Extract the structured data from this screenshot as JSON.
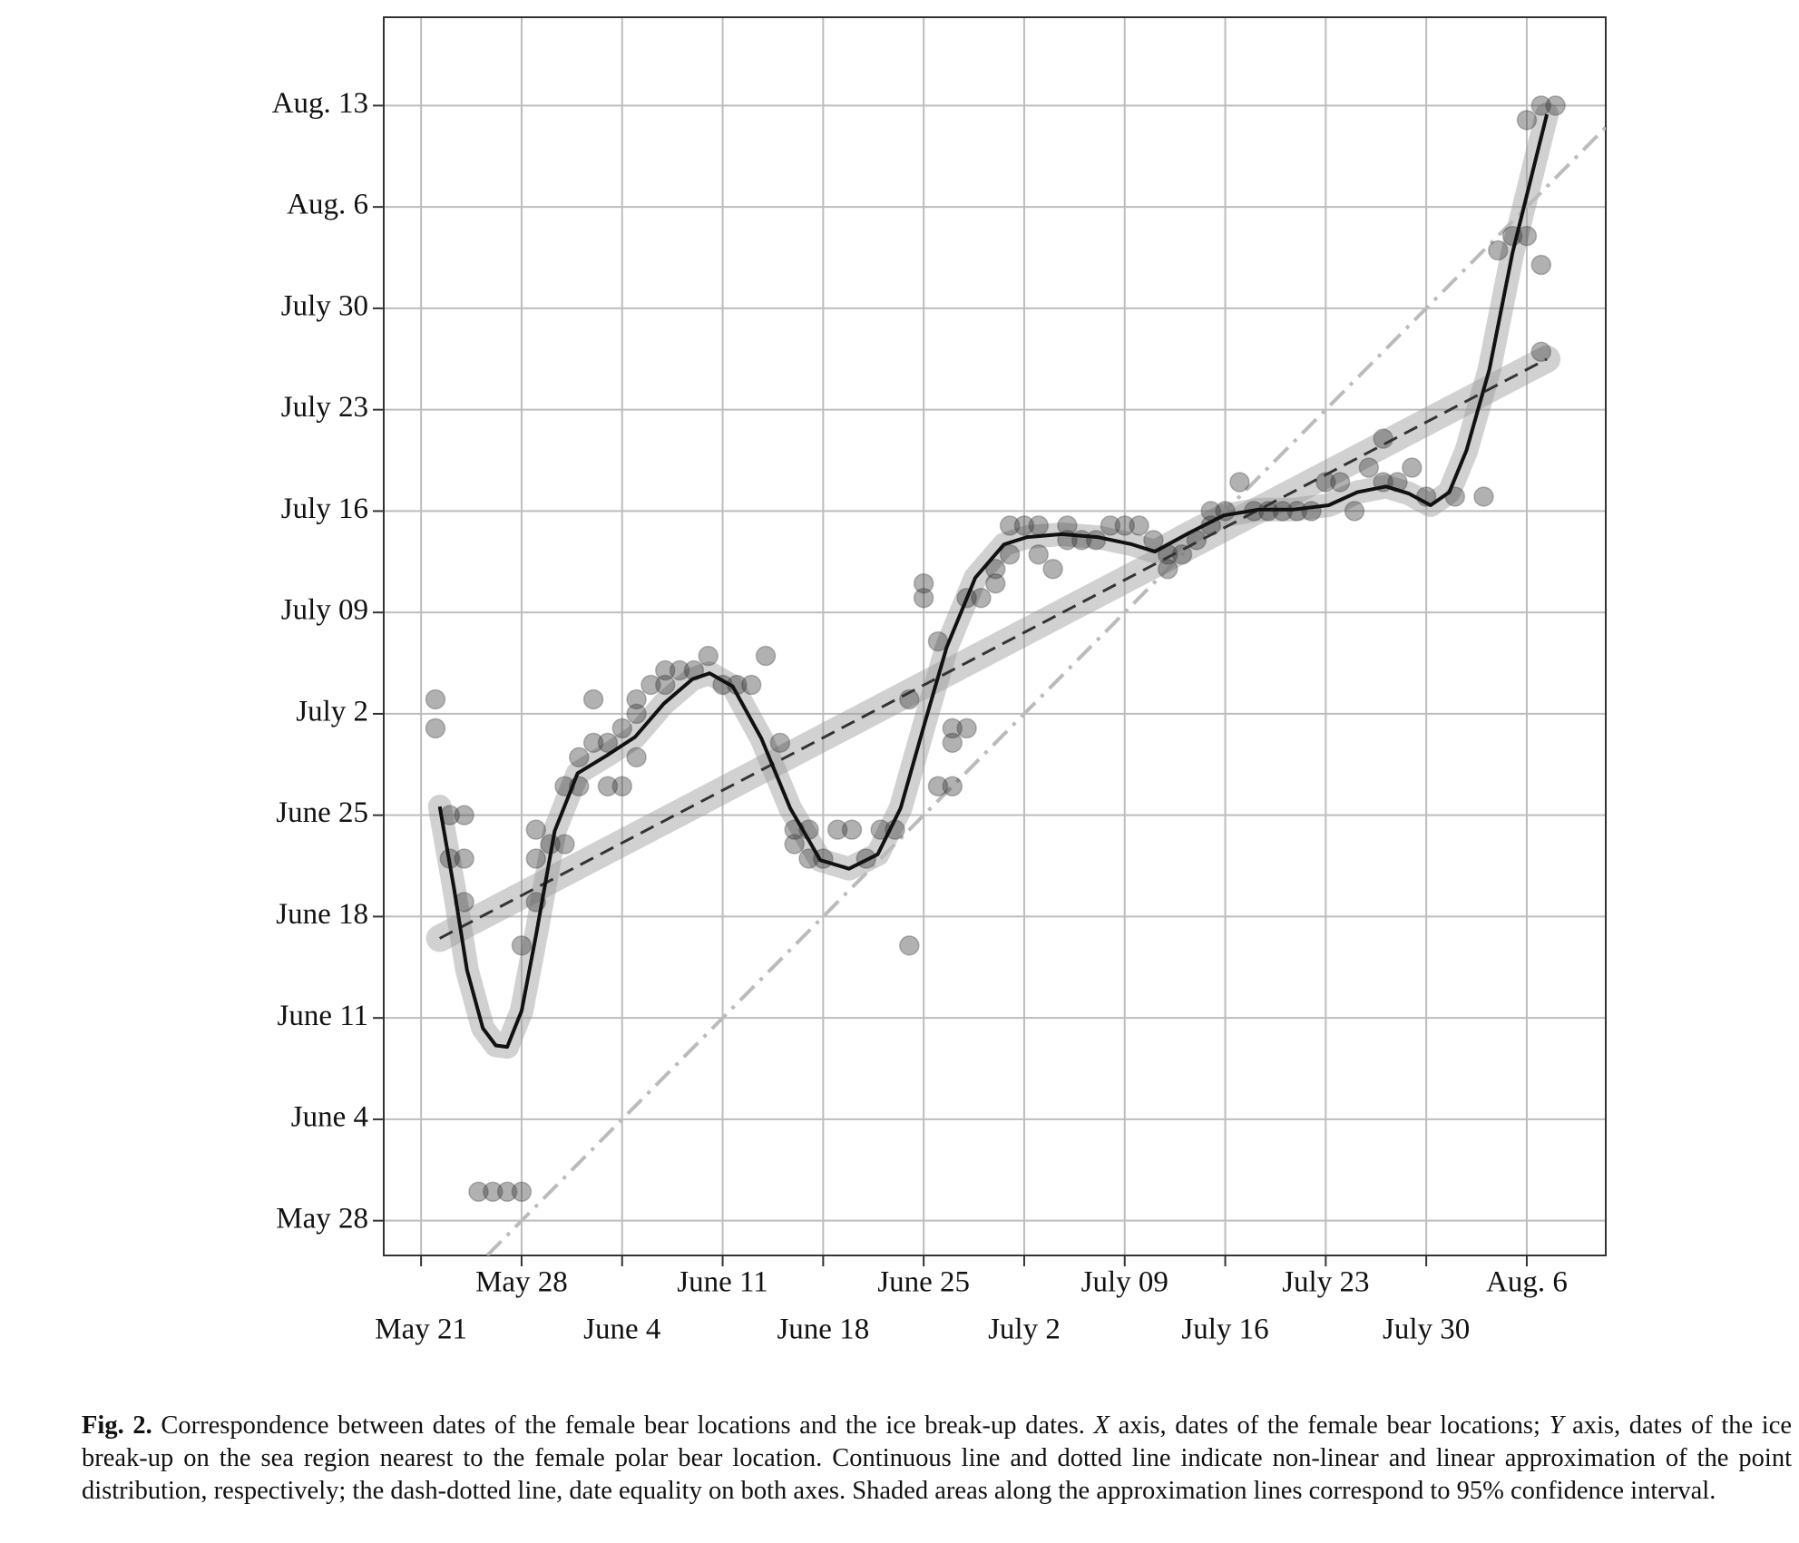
{
  "chart_data": {
    "type": "scatter",
    "xlim": [
      138.4,
      223.5
    ],
    "ylim": [
      145.6,
      231.1
    ],
    "grid": true,
    "point_color": "#333333",
    "xticks": [
      {
        "value": 141,
        "label": "May 21"
      },
      {
        "value": 148,
        "label": "May 28"
      },
      {
        "value": 155,
        "label": "June 4"
      },
      {
        "value": 162,
        "label": "June 11"
      },
      {
        "value": 169,
        "label": "June 18"
      },
      {
        "value": 176,
        "label": "June 25"
      },
      {
        "value": 183,
        "label": "July 2"
      },
      {
        "value": 190,
        "label": "July 09"
      },
      {
        "value": 197,
        "label": "July 16"
      },
      {
        "value": 204,
        "label": "July 23"
      },
      {
        "value": 211,
        "label": "July 30"
      },
      {
        "value": 218,
        "label": "Aug. 6"
      }
    ],
    "yticks": [
      {
        "value": 148,
        "label": "May 28"
      },
      {
        "value": 155,
        "label": "June 4"
      },
      {
        "value": 162,
        "label": "June 11"
      },
      {
        "value": 169,
        "label": "June 18"
      },
      {
        "value": 176,
        "label": "June 25"
      },
      {
        "value": 183,
        "label": "July 2"
      },
      {
        "value": 190,
        "label": "July 09"
      },
      {
        "value": 197,
        "label": "July 16"
      },
      {
        "value": 204,
        "label": "July 23"
      },
      {
        "value": 211,
        "label": "July 30"
      },
      {
        "value": 218,
        "label": "Aug. 6"
      },
      {
        "value": 225,
        "label": "Aug. 13"
      }
    ],
    "x": [
      142,
      142,
      143,
      144,
      143,
      144,
      144,
      145,
      146,
      147,
      148,
      148,
      149,
      149,
      149,
      150,
      151,
      151,
      152,
      152,
      153,
      153,
      154,
      154,
      155,
      155,
      156,
      156,
      156,
      157,
      158,
      158,
      159,
      160,
      161,
      162,
      163,
      164,
      165,
      166,
      167,
      167,
      168,
      168,
      169,
      170,
      171,
      172,
      173,
      174,
      175,
      175,
      176,
      176,
      177,
      177,
      178,
      178,
      178,
      179,
      179,
      180,
      181,
      181,
      182,
      182,
      183,
      184,
      184,
      185,
      186,
      186,
      187,
      188,
      189,
      190,
      191,
      192,
      193,
      193,
      194,
      195,
      196,
      196,
      197,
      198,
      199,
      200,
      201,
      202,
      203,
      204,
      205,
      206,
      207,
      208,
      208,
      209,
      210,
      211,
      213,
      215,
      216,
      217,
      218,
      219,
      218,
      219,
      220,
      219
    ],
    "y": [
      182,
      184,
      176,
      176,
      173,
      173,
      170,
      150,
      150,
      150,
      150,
      167,
      170,
      173,
      175,
      174,
      174,
      178,
      178,
      180,
      184,
      181,
      178,
      181,
      182,
      178,
      184,
      180,
      183,
      185,
      185,
      186,
      186,
      186,
      187,
      185,
      185,
      185,
      187,
      181,
      174,
      175,
      175,
      173,
      173,
      175,
      175,
      173,
      175,
      175,
      167,
      184,
      191,
      192,
      188,
      178,
      182,
      181,
      178,
      182,
      191,
      191,
      192,
      193,
      194,
      196,
      196,
      196,
      194,
      193,
      195,
      196,
      195,
      195,
      196,
      196,
      196,
      195,
      193,
      194,
      194,
      195,
      196,
      197,
      197,
      199,
      197,
      197,
      197,
      197,
      197,
      199,
      199,
      197,
      200,
      202,
      199,
      199,
      200,
      198,
      198,
      198,
      215,
      216,
      216,
      214,
      224,
      225,
      225,
      208
    ],
    "lines": {
      "nonlinear": {
        "color": "#111111",
        "x": [
          142.3,
          143.3,
          144.2,
          145.3,
          146.2,
          147,
          148,
          149,
          150.3,
          151.9,
          153.9,
          155.9,
          157.9,
          159.9,
          161.1,
          162.7,
          164.7,
          166.7,
          168.8,
          170.8,
          172.8,
          174.4,
          176,
          177.6,
          179.6,
          181.6,
          183.2,
          185.6,
          188.1,
          190.5,
          192.1,
          194.5,
          196.9,
          199.3,
          201.7,
          204.2,
          206.2,
          208.2,
          209.8,
          211.3,
          212.6,
          213.8,
          215.4,
          217,
          218.6,
          219.4
        ],
        "y": [
          176.6,
          170.9,
          165.3,
          161.3,
          160.1,
          160,
          162.5,
          167.7,
          174.9,
          178.9,
          180.1,
          181.4,
          183.7,
          185.4,
          185.8,
          184.9,
          181.3,
          176.5,
          172.9,
          172.3,
          173.3,
          176.5,
          182.1,
          187.6,
          192.4,
          194.7,
          195.2,
          195.4,
          195.2,
          194.7,
          194.2,
          195.5,
          196.7,
          197.1,
          197.1,
          197.4,
          198.3,
          198.7,
          198.2,
          197.4,
          198.3,
          201.2,
          206.8,
          214.8,
          221.2,
          224.4
        ]
      },
      "linear": {
        "color": "#333333",
        "x": [
          142.3,
          219.4
        ],
        "y": [
          167.5,
          207.5
        ]
      },
      "equality": {
        "color": "#bbbbbb",
        "x": [
          145.6,
          223.5
        ],
        "y": [
          145.6,
          223.5
        ]
      }
    }
  },
  "caption": [
    {
      "text": "Fig. 2.",
      "bold": true
    },
    {
      "text": " Correspondence between dates of the female bear locations and the ice break-up dates. "
    },
    {
      "text": "X",
      "italic": true
    },
    {
      "text": " axis, dates of the female bear locations; "
    },
    {
      "text": "Y",
      "italic": true
    },
    {
      "text": " axis, dates of the ice break-up on the sea region nearest to the female polar bear location. Continuous line and dotted line indicate non-linear and linear approximation of the point distribution, respectively; the dash-dotted line, date equality on both axes. Shaded areas along the approximation lines correspond to 95% confidence interval."
    }
  ]
}
